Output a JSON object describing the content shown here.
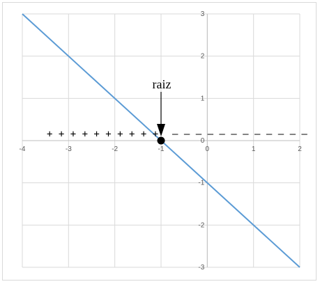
{
  "chart_data": {
    "type": "line",
    "title": "",
    "xlabel": "",
    "ylabel": "",
    "xlim": [
      -4,
      2
    ],
    "ylim": [
      -3,
      3
    ],
    "x_ticks": [
      "-4",
      "-3",
      "-2",
      "-1",
      "0",
      "1",
      "2"
    ],
    "y_ticks": [
      "3",
      "2",
      "1",
      "0",
      "-1",
      "-2",
      "-3"
    ],
    "grid": true,
    "series": [
      {
        "x": [
          -4,
          2
        ],
        "y": [
          3,
          -3
        ],
        "color": "#5b9bd5"
      }
    ],
    "root_point": {
      "x": -1,
      "y": 0
    },
    "annotations": {
      "root_label": "raiz",
      "positive_signs": "+ + + + + + + + + +",
      "negative_signs": "– – – – – – – – – – – –"
    }
  }
}
